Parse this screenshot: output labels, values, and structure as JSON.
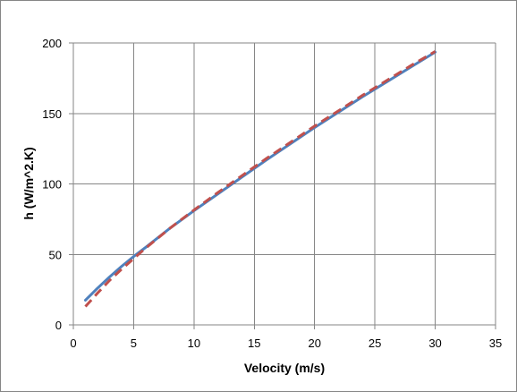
{
  "chart_data": {
    "type": "line",
    "title": "",
    "xlabel": "Velocity (m/s)",
    "ylabel": "h (W/m^2.K)",
    "xlim": [
      0,
      35
    ],
    "ylim": [
      0,
      200
    ],
    "xticks": [
      0,
      5,
      10,
      15,
      20,
      25,
      30,
      35
    ],
    "yticks": [
      0,
      50,
      100,
      150,
      200
    ],
    "grid": true,
    "legend": "none",
    "series": [
      {
        "style": "solid",
        "color": "#4F81BD",
        "x": [
          1,
          2,
          3,
          4,
          5,
          6,
          8,
          10,
          12,
          14,
          16,
          18,
          20,
          22,
          24,
          26,
          28,
          30
        ],
        "y": [
          17.5,
          26,
          34,
          41.5,
          48.5,
          55,
          68.5,
          81,
          93,
          105,
          117,
          128.5,
          140,
          151,
          162,
          172.5,
          183,
          193.5
        ]
      },
      {
        "style": "dashed",
        "color": "#C0504D",
        "x": [
          1,
          2,
          3,
          4,
          5,
          6,
          8,
          10,
          12,
          14,
          16,
          18,
          20,
          22,
          24,
          26,
          28,
          30
        ],
        "y": [
          13,
          22.5,
          31.5,
          39.5,
          47,
          54.5,
          68.5,
          81.5,
          94,
          106,
          118,
          129.5,
          141,
          152,
          163,
          173.5,
          184,
          194
        ]
      }
    ]
  }
}
